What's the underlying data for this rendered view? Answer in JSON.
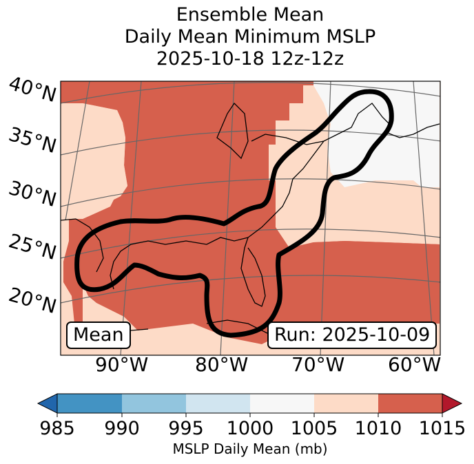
{
  "title": {
    "line1": "Ensemble Mean",
    "line2": "Daily Mean Minimum MSLP",
    "line3": "2025-10-18 12z-12z"
  },
  "latitude_labels": [
    "40°N",
    "35°N",
    "30°N",
    "25°N",
    "20°N"
  ],
  "longitude_labels": [
    "90°W",
    "80°W",
    "70°W",
    "60°W"
  ],
  "left_box": "Mean",
  "right_box": "Run: 2025-10-09",
  "colorbar": {
    "ticks": [
      "985",
      "990",
      "995",
      "1000",
      "1005",
      "1010",
      "1015"
    ],
    "label": "MSLP Daily Mean (mb)",
    "colors": [
      "#2166ac",
      "#4393c3",
      "#92c5de",
      "#d1e5f0",
      "#f7f7f7",
      "#fddbc7",
      "#d6604d",
      "#b2182b"
    ],
    "extend": "both"
  },
  "map_colors": {
    "band_1005_1010": "#fddbc7",
    "band_1010_1015": "#d6604d",
    "band_1000_1005": "#f7f7f7",
    "contour": "#000000"
  }
}
